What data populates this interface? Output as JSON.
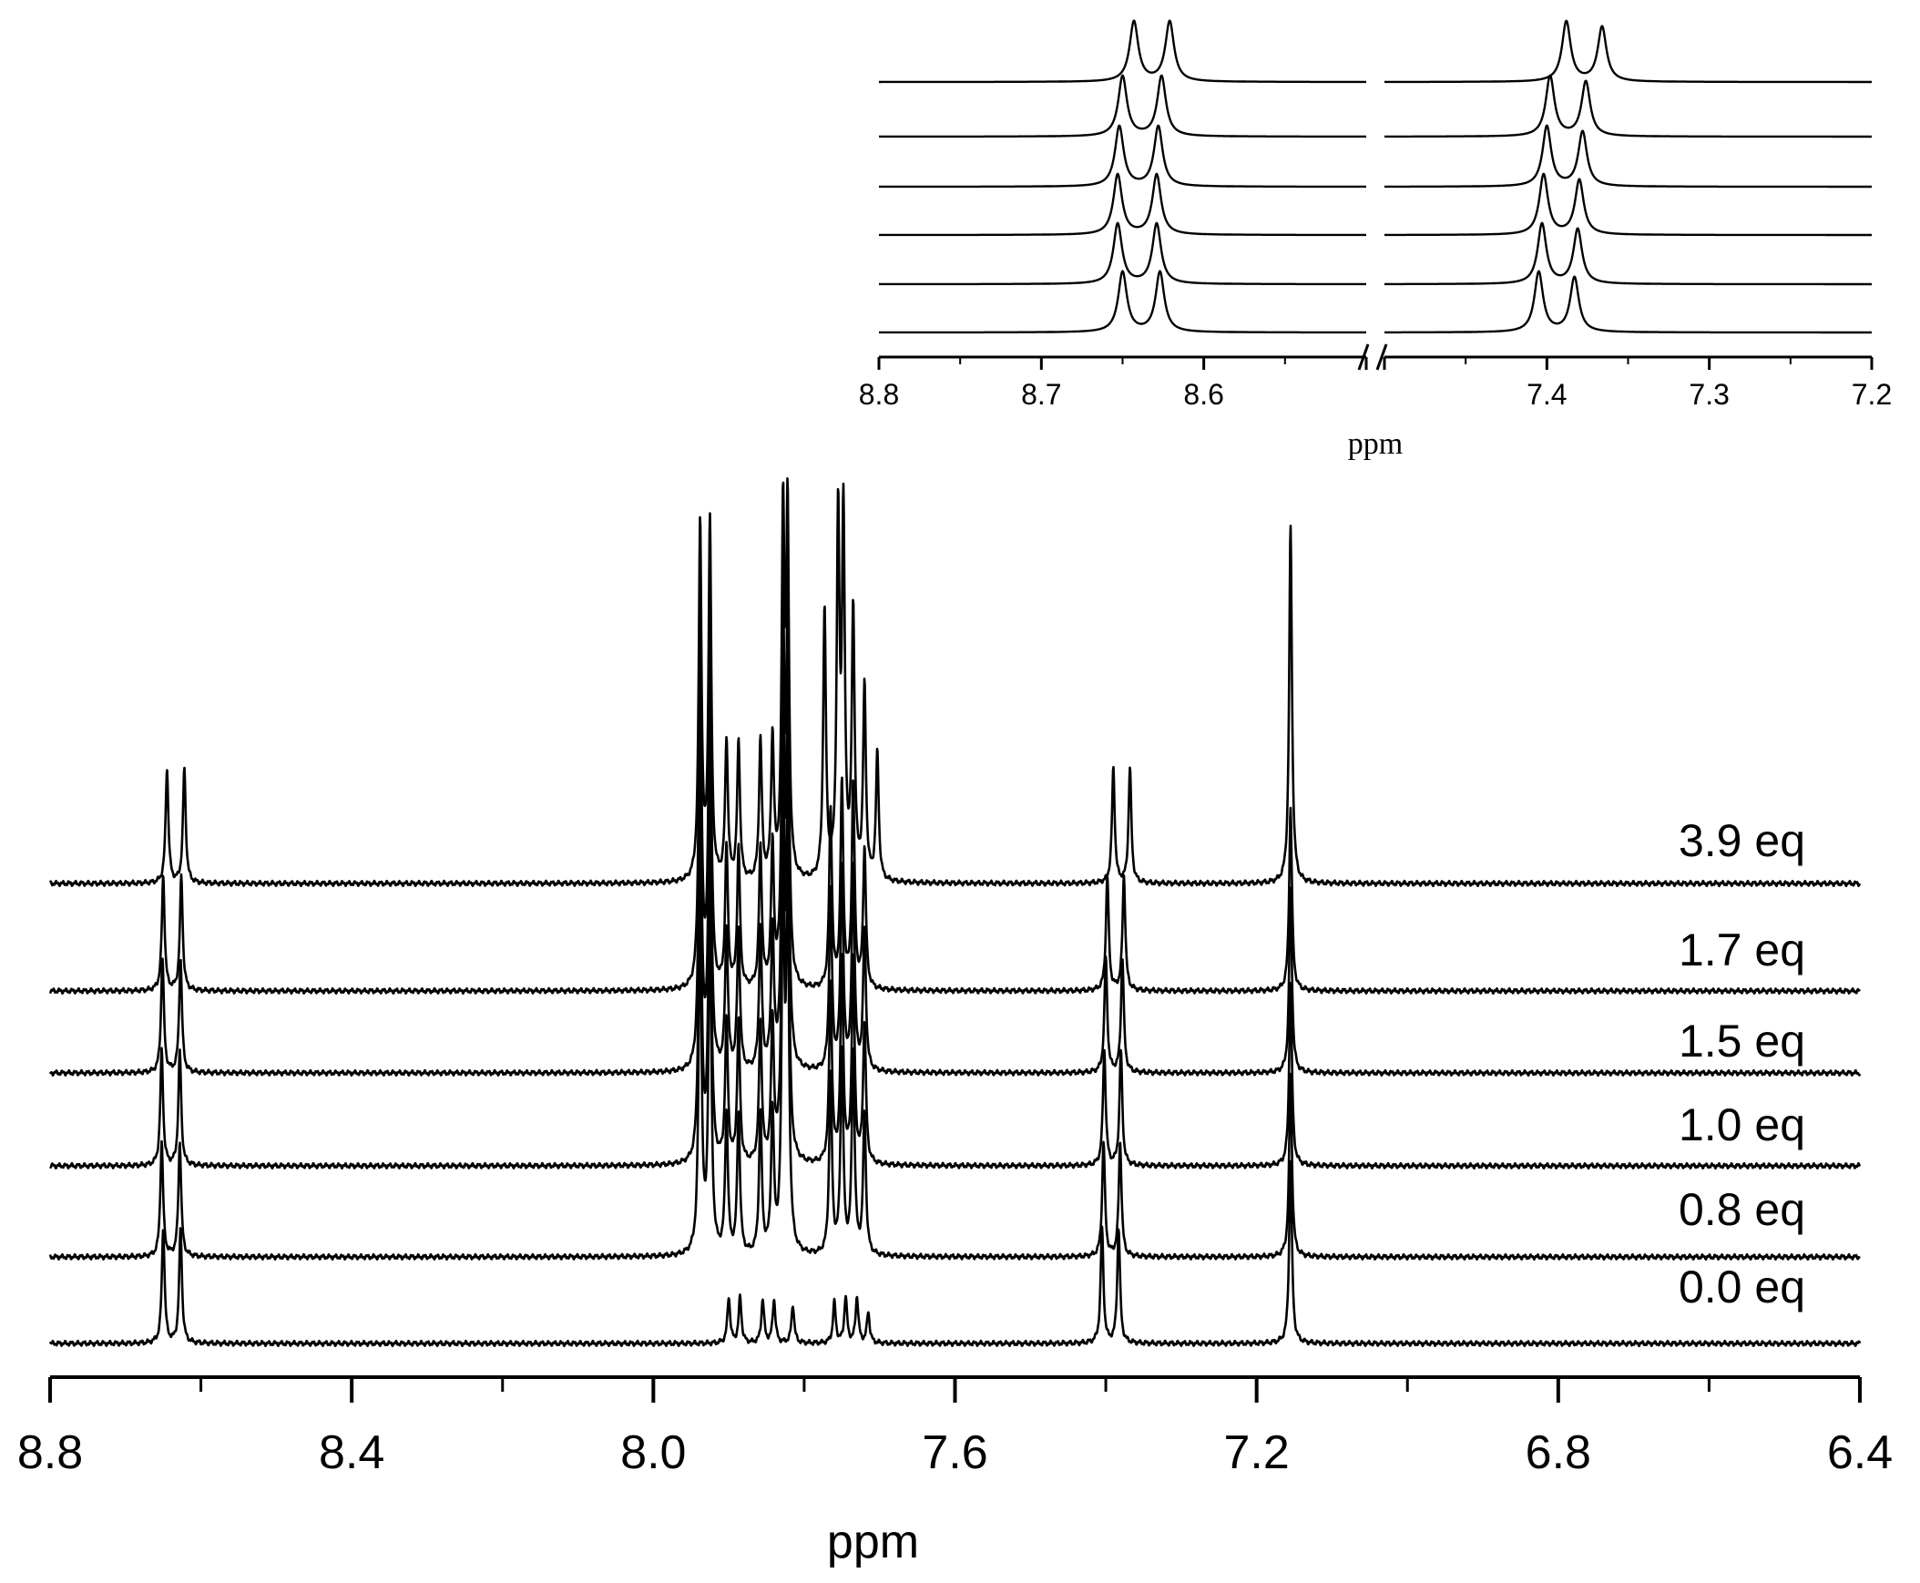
{
  "chart_data": [
    {
      "type": "line",
      "subtype": "stacked NMR spectra",
      "xlabel": "ppm",
      "xlim": [
        8.8,
        6.4
      ],
      "x_reversed": true,
      "x_ticks": [
        "8.8",
        "8.4",
        "8.0",
        "7.6",
        "7.2",
        "6.8",
        "6.4"
      ],
      "grid": false,
      "series": [
        {
          "name": "0.0 eq",
          "peaks": [
            {
              "x": 8.65,
              "h": 0.45
            },
            {
              "x": 8.627,
              "h": 0.45
            },
            {
              "x": 7.9,
              "h": 0.18
            },
            {
              "x": 7.885,
              "h": 0.18
            },
            {
              "x": 7.855,
              "h": 0.17
            },
            {
              "x": 7.84,
              "h": 0.17
            },
            {
              "x": 7.815,
              "h": 0.15
            },
            {
              "x": 7.76,
              "h": 0.16
            },
            {
              "x": 7.745,
              "h": 0.18
            },
            {
              "x": 7.73,
              "h": 0.18
            },
            {
              "x": 7.715,
              "h": 0.12
            },
            {
              "x": 7.405,
              "h": 0.45
            },
            {
              "x": 7.383,
              "h": 0.45
            },
            {
              "x": 7.155,
              "h": 0.72
            }
          ]
        },
        {
          "name": "0.8 eq",
          "peaks": [
            {
              "x": 8.652,
              "h": 0.45
            },
            {
              "x": 8.628,
              "h": 0.45
            },
            {
              "x": 7.938,
              "h": 1.4
            },
            {
              "x": 7.925,
              "h": 1.4
            },
            {
              "x": 7.903,
              "h": 0.55
            },
            {
              "x": 7.887,
              "h": 0.55
            },
            {
              "x": 7.858,
              "h": 0.55
            },
            {
              "x": 7.842,
              "h": 0.55
            },
            {
              "x": 7.828,
              "h": 1.4
            },
            {
              "x": 7.822,
              "h": 1.4
            },
            {
              "x": 7.765,
              "h": 0.7
            },
            {
              "x": 7.75,
              "h": 0.8
            },
            {
              "x": 7.735,
              "h": 0.8
            },
            {
              "x": 7.72,
              "h": 0.55
            },
            {
              "x": 7.403,
              "h": 0.45
            },
            {
              "x": 7.381,
              "h": 0.45
            },
            {
              "x": 7.155,
              "h": 0.72
            }
          ]
        },
        {
          "name": "1.0 eq",
          "peaks": [
            {
              "x": 8.652,
              "h": 0.45
            },
            {
              "x": 8.628,
              "h": 0.45
            },
            {
              "x": 7.938,
              "h": 1.4
            },
            {
              "x": 7.925,
              "h": 1.4
            },
            {
              "x": 7.903,
              "h": 0.55
            },
            {
              "x": 7.887,
              "h": 0.55
            },
            {
              "x": 7.858,
              "h": 0.55
            },
            {
              "x": 7.842,
              "h": 0.55
            },
            {
              "x": 7.828,
              "h": 1.4
            },
            {
              "x": 7.822,
              "h": 1.4
            },
            {
              "x": 7.765,
              "h": 0.7
            },
            {
              "x": 7.75,
              "h": 0.8
            },
            {
              "x": 7.735,
              "h": 0.8
            },
            {
              "x": 7.72,
              "h": 0.55
            },
            {
              "x": 7.402,
              "h": 0.45
            },
            {
              "x": 7.38,
              "h": 0.45
            },
            {
              "x": 7.155,
              "h": 0.72
            }
          ]
        },
        {
          "name": "1.5 eq",
          "peaks": [
            {
              "x": 8.651,
              "h": 0.45
            },
            {
              "x": 8.627,
              "h": 0.45
            },
            {
              "x": 7.938,
              "h": 1.4
            },
            {
              "x": 7.925,
              "h": 1.4
            },
            {
              "x": 7.903,
              "h": 0.55
            },
            {
              "x": 7.887,
              "h": 0.55
            },
            {
              "x": 7.858,
              "h": 0.55
            },
            {
              "x": 7.842,
              "h": 0.55
            },
            {
              "x": 7.828,
              "h": 1.4
            },
            {
              "x": 7.822,
              "h": 1.4
            },
            {
              "x": 7.765,
              "h": 0.7
            },
            {
              "x": 7.75,
              "h": 0.8
            },
            {
              "x": 7.735,
              "h": 0.8
            },
            {
              "x": 7.72,
              "h": 0.55
            },
            {
              "x": 7.4,
              "h": 0.45
            },
            {
              "x": 7.378,
              "h": 0.45
            },
            {
              "x": 7.155,
              "h": 0.72
            }
          ]
        },
        {
          "name": "1.7 eq",
          "peaks": [
            {
              "x": 8.65,
              "h": 0.45
            },
            {
              "x": 8.626,
              "h": 0.45
            },
            {
              "x": 7.938,
              "h": 1.4
            },
            {
              "x": 7.925,
              "h": 1.4
            },
            {
              "x": 7.903,
              "h": 0.55
            },
            {
              "x": 7.887,
              "h": 0.55
            },
            {
              "x": 7.858,
              "h": 0.55
            },
            {
              "x": 7.842,
              "h": 0.55
            },
            {
              "x": 7.828,
              "h": 1.4
            },
            {
              "x": 7.822,
              "h": 1.4
            },
            {
              "x": 7.765,
              "h": 0.7
            },
            {
              "x": 7.75,
              "h": 0.8
            },
            {
              "x": 7.735,
              "h": 0.8
            },
            {
              "x": 7.72,
              "h": 0.55
            },
            {
              "x": 7.398,
              "h": 0.45
            },
            {
              "x": 7.376,
              "h": 0.45
            },
            {
              "x": 7.155,
              "h": 0.72
            }
          ]
        },
        {
          "name": "3.9 eq",
          "peaks": [
            {
              "x": 8.645,
              "h": 0.45
            },
            {
              "x": 8.622,
              "h": 0.45
            },
            {
              "x": 7.938,
              "h": 1.4
            },
            {
              "x": 7.925,
              "h": 1.4
            },
            {
              "x": 7.903,
              "h": 0.55
            },
            {
              "x": 7.887,
              "h": 0.55
            },
            {
              "x": 7.858,
              "h": 0.55
            },
            {
              "x": 7.842,
              "h": 0.55
            },
            {
              "x": 7.828,
              "h": 1.4
            },
            {
              "x": 7.822,
              "h": 1.4
            },
            {
              "x": 7.773,
              "h": 1.05
            },
            {
              "x": 7.755,
              "h": 1.4
            },
            {
              "x": 7.748,
              "h": 1.4
            },
            {
              "x": 7.735,
              "h": 1.05
            },
            {
              "x": 7.72,
              "h": 0.75
            },
            {
              "x": 7.703,
              "h": 0.5
            },
            {
              "x": 7.39,
              "h": 0.45
            },
            {
              "x": 7.368,
              "h": 0.45
            },
            {
              "x": 7.155,
              "h": 1.4
            }
          ]
        }
      ]
    },
    {
      "type": "line",
      "subtype": "inset stacked NMR spectra (broken x axis)",
      "xlabel": "ppm",
      "x_segments": [
        [
          8.8,
          8.5
        ],
        [
          7.5,
          7.2
        ]
      ],
      "x_reversed": true,
      "x_ticks": [
        "8.8",
        "8.7",
        "8.6",
        "7.4",
        "7.3",
        "7.2"
      ],
      "axis_break": true,
      "grid": false,
      "series_order": [
        "0.0 eq",
        "0.8 eq",
        "1.0 eq",
        "1.5 eq",
        "1.7 eq",
        "3.9 eq"
      ],
      "series": [
        {
          "peaks": [
            {
              "x": 8.65,
              "h": 0.55
            },
            {
              "x": 8.627,
              "h": 0.55
            },
            {
              "x": 7.405,
              "h": 0.55
            },
            {
              "x": 7.383,
              "h": 0.5
            }
          ]
        },
        {
          "peaks": [
            {
              "x": 8.653,
              "h": 0.55
            },
            {
              "x": 8.629,
              "h": 0.55
            },
            {
              "x": 7.403,
              "h": 0.55
            },
            {
              "x": 7.381,
              "h": 0.5
            }
          ]
        },
        {
          "peaks": [
            {
              "x": 8.653,
              "h": 0.55
            },
            {
              "x": 8.629,
              "h": 0.55
            },
            {
              "x": 7.402,
              "h": 0.55
            },
            {
              "x": 7.38,
              "h": 0.5
            }
          ]
        },
        {
          "peaks": [
            {
              "x": 8.652,
              "h": 0.55
            },
            {
              "x": 8.628,
              "h": 0.55
            },
            {
              "x": 7.4,
              "h": 0.55
            },
            {
              "x": 7.378,
              "h": 0.5
            }
          ]
        },
        {
          "peaks": [
            {
              "x": 8.65,
              "h": 0.55
            },
            {
              "x": 8.626,
              "h": 0.55
            },
            {
              "x": 7.398,
              "h": 0.55
            },
            {
              "x": 7.376,
              "h": 0.5
            }
          ]
        },
        {
          "peaks": [
            {
              "x": 8.643,
              "h": 0.55
            },
            {
              "x": 8.621,
              "h": 0.55
            },
            {
              "x": 7.388,
              "h": 0.55
            },
            {
              "x": 7.366,
              "h": 0.5
            }
          ]
        }
      ]
    }
  ]
}
